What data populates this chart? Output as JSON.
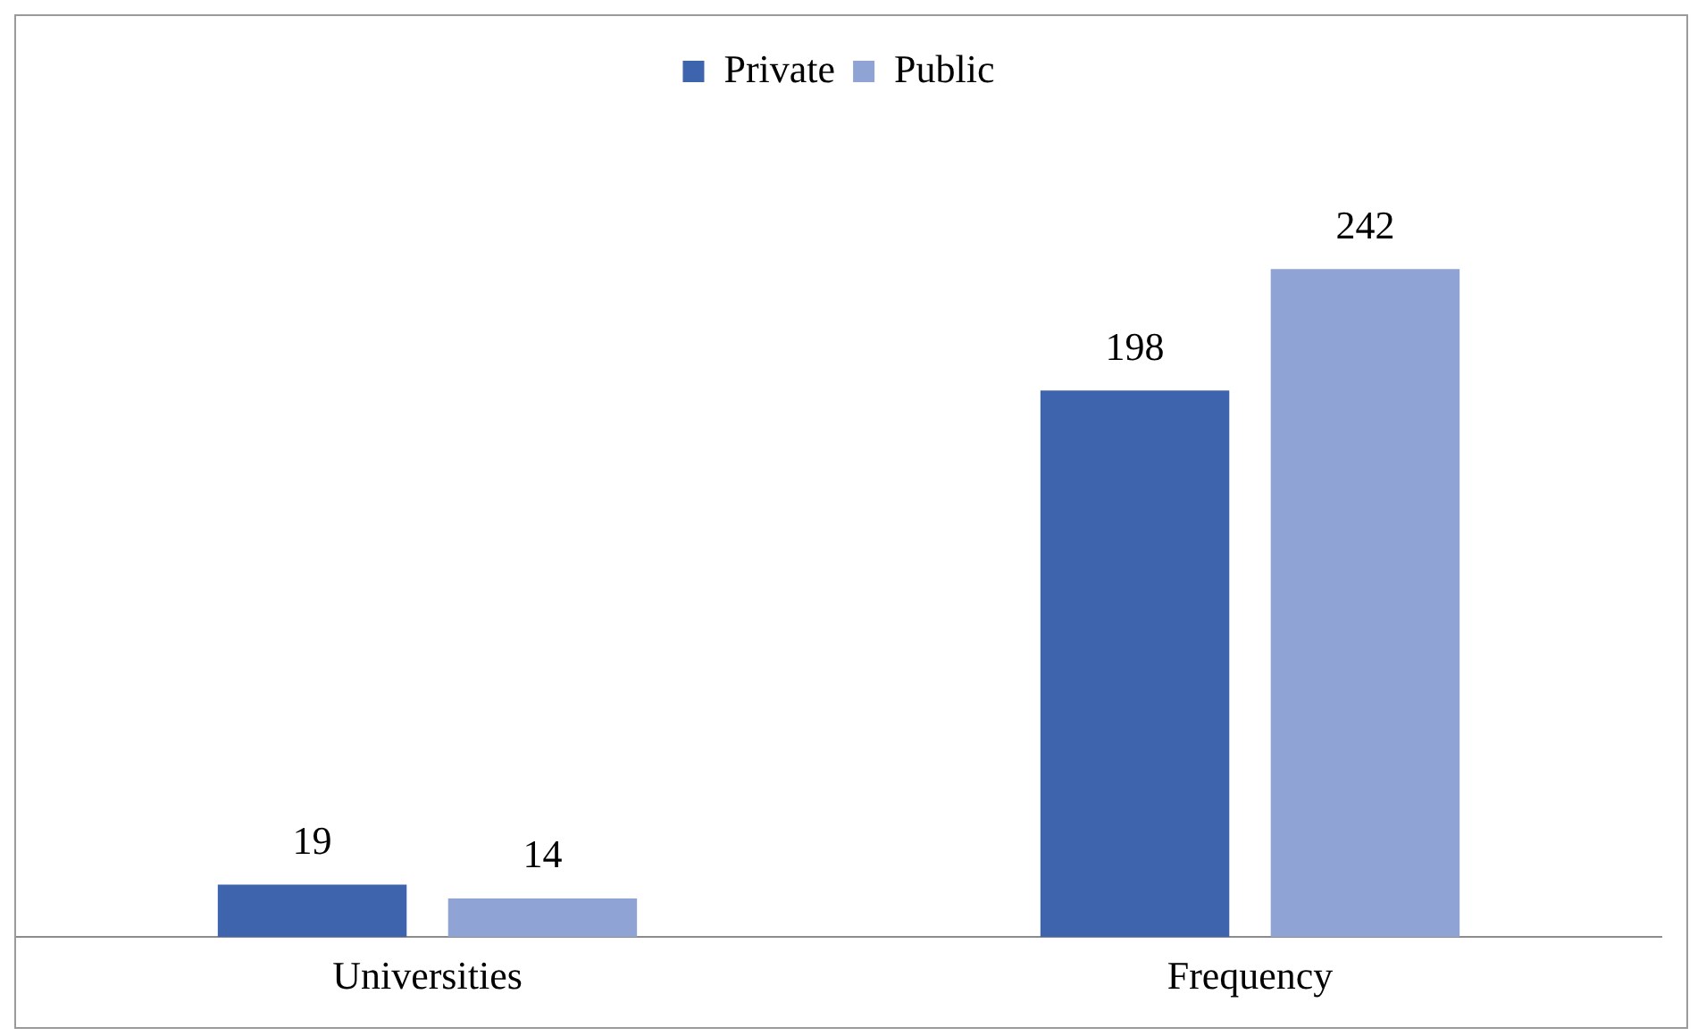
{
  "chart_data": {
    "type": "bar",
    "categories": [
      "Universities",
      "Frequency"
    ],
    "series": [
      {
        "name": "Private",
        "color": "#3d64ad",
        "values": [
          19,
          198
        ]
      },
      {
        "name": "Public",
        "color": "#8fa3d4",
        "values": [
          14,
          242
        ]
      }
    ],
    "data_labels": true,
    "legend": "top",
    "grid": false
  }
}
